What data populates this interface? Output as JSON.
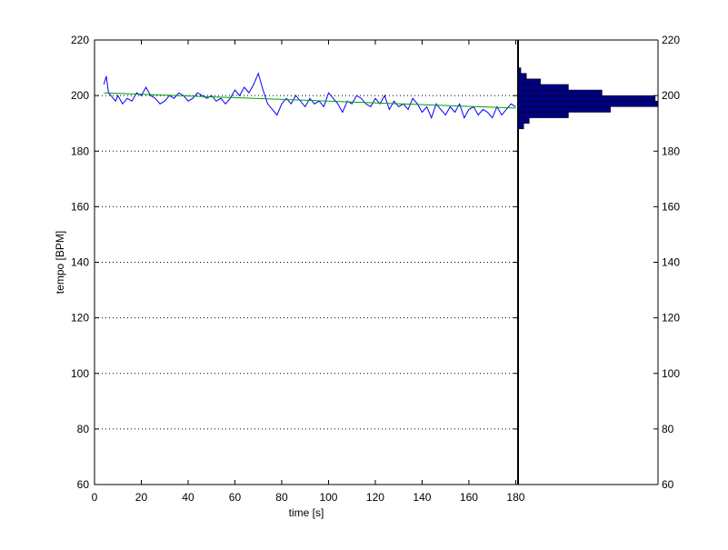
{
  "colors": {
    "tempo_line": "#0000ff",
    "trend_line": "#00a000",
    "histogram_fill": "#000080",
    "axis": "#000000",
    "grid": "#000000"
  },
  "chart_data": [
    {
      "type": "line",
      "xlabel": "time [s]",
      "ylabel": "tempo [BPM]",
      "xlim": [
        0,
        181
      ],
      "ylim": [
        60,
        220
      ],
      "xticks": [
        0,
        20,
        40,
        60,
        80,
        100,
        120,
        140,
        160,
        180
      ],
      "yticks": [
        60,
        80,
        100,
        120,
        140,
        160,
        180,
        200,
        220
      ],
      "grid": "horizontal-dotted",
      "series": [
        {
          "kind": "tempo",
          "x": [
            4,
            5,
            6,
            7,
            8,
            9,
            10,
            12,
            14,
            16,
            18,
            20,
            22,
            24,
            26,
            28,
            30,
            32,
            34,
            36,
            38,
            40,
            42,
            44,
            46,
            48,
            50,
            52,
            54,
            56,
            58,
            60,
            62,
            64,
            66,
            68,
            70,
            72,
            74,
            76,
            78,
            80,
            82,
            84,
            86,
            88,
            90,
            92,
            94,
            96,
            98,
            100,
            102,
            104,
            106,
            108,
            110,
            112,
            114,
            116,
            118,
            120,
            122,
            124,
            126,
            128,
            130,
            132,
            134,
            136,
            138,
            140,
            142,
            144,
            146,
            148,
            150,
            152,
            154,
            156,
            158,
            160,
            162,
            164,
            166,
            168,
            170,
            172,
            174,
            176,
            178,
            180
          ],
          "y": [
            204,
            207,
            201,
            200,
            199,
            198,
            200,
            197,
            199,
            198,
            201,
            200,
            203,
            200,
            199,
            197,
            198,
            200,
            199,
            201,
            200,
            198,
            199,
            201,
            200,
            199,
            200,
            198,
            199,
            197,
            199,
            202,
            200,
            203,
            201,
            204,
            208,
            202,
            197,
            195,
            193,
            197,
            199,
            197,
            200,
            198,
            196,
            199,
            197,
            198,
            196,
            201,
            199,
            197,
            194,
            198,
            197,
            200,
            199,
            197,
            196,
            199,
            197,
            200,
            195,
            198,
            196,
            197,
            195,
            199,
            197,
            194,
            196,
            192,
            197,
            195,
            193,
            196,
            194,
            197,
            192,
            195,
            196,
            193,
            195,
            194,
            192,
            196,
            193,
            195,
            197,
            196
          ]
        },
        {
          "kind": "trend",
          "x": [
            4,
            180
          ],
          "y": [
            201,
            195.5
          ]
        }
      ]
    },
    {
      "type": "bar",
      "orientation": "horizontal",
      "ylim": [
        60,
        220
      ],
      "yticks": [
        60,
        80,
        100,
        120,
        140,
        160,
        180,
        200,
        220
      ],
      "bins": [
        189,
        191,
        193,
        195,
        197,
        199,
        201,
        203,
        205,
        207,
        209
      ],
      "counts": [
        2,
        4,
        18,
        33,
        50,
        49,
        30,
        18,
        8,
        3,
        1
      ]
    }
  ]
}
